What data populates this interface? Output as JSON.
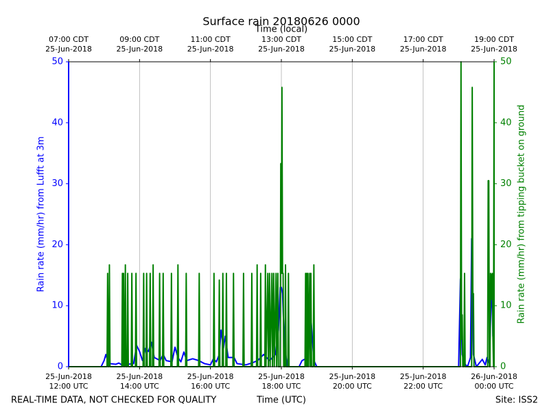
{
  "chart_data": {
    "type": "line",
    "title": "Surface rain 20180626 0000",
    "x2_label": "Time (local)",
    "x_label": "Time (UTC)",
    "y_label": "Rain rate (mm/hr) from Lufft at 3m",
    "y2_label": "Rain rate (mm/hr) from tipping bucket on ground",
    "footer_left": "REAL-TIME DATA, NOT CHECKED FOR QUALITY",
    "footer_right": "Site: ISS2",
    "grid": true,
    "xlim": [
      "2018-06-25T12:00",
      "2018-06-26T00:00"
    ],
    "xticks": [
      {
        "value": "2018-06-25T12:00",
        "label": "25-Jun-2018\n12:00 UTC"
      },
      {
        "value": "2018-06-25T14:00",
        "label": "25-Jun-2018\n14:00 UTC"
      },
      {
        "value": "2018-06-25T16:00",
        "label": "25-Jun-2018\n16:00 UTC"
      },
      {
        "value": "2018-06-25T18:00",
        "label": "25-Jun-2018\n18:00 UTC"
      },
      {
        "value": "2018-06-25T20:00",
        "label": "25-Jun-2018\n20:00 UTC"
      },
      {
        "value": "2018-06-25T22:00",
        "label": "25-Jun-2018\n22:00 UTC"
      },
      {
        "value": "2018-06-26T00:00",
        "label": "26-Jun-2018\n00:00 UTC"
      }
    ],
    "x2ticks": [
      {
        "value": "2018-06-25T12:00",
        "label": "07:00 CDT\n25-Jun-2018"
      },
      {
        "value": "2018-06-25T14:00",
        "label": "09:00 CDT\n25-Jun-2018"
      },
      {
        "value": "2018-06-25T16:00",
        "label": "11:00 CDT\n25-Jun-2018"
      },
      {
        "value": "2018-06-25T18:00",
        "label": "13:00 CDT\n25-Jun-2018"
      },
      {
        "value": "2018-06-25T20:00",
        "label": "15:00 CDT\n25-Jun-2018"
      },
      {
        "value": "2018-06-25T22:00",
        "label": "17:00 CDT\n25-Jun-2018"
      },
      {
        "value": "2018-06-26T00:00",
        "label": "19:00 CDT\n25-Jun-2018"
      }
    ],
    "ylim": [
      0,
      50
    ],
    "yticks": [
      0,
      10,
      20,
      30,
      40,
      50
    ],
    "y2lim": [
      0,
      50
    ],
    "y2ticks": [
      0,
      10,
      20,
      30,
      40,
      50
    ],
    "y_color": "#0000ff",
    "y2_color": "#008000",
    "series": [
      {
        "color": "#0000ff",
        "x": [
          "2018-06-25T12:00",
          "2018-06-25T12:55",
          "2018-06-25T13:00",
          "2018-06-25T13:03",
          "2018-06-25T13:06",
          "2018-06-25T13:08",
          "2018-06-25T13:10",
          "2018-06-25T13:20",
          "2018-06-25T13:25",
          "2018-06-25T13:30",
          "2018-06-25T13:50",
          "2018-06-25T13:55",
          "2018-06-25T14:00",
          "2018-06-25T14:05",
          "2018-06-25T14:10",
          "2018-06-25T14:15",
          "2018-06-25T14:20",
          "2018-06-25T14:25",
          "2018-06-25T14:35",
          "2018-06-25T14:40",
          "2018-06-25T14:45",
          "2018-06-25T14:55",
          "2018-06-25T15:00",
          "2018-06-25T15:05",
          "2018-06-25T15:10",
          "2018-06-25T15:15",
          "2018-06-25T15:20",
          "2018-06-25T15:30",
          "2018-06-25T15:40",
          "2018-06-25T15:50",
          "2018-06-25T16:00",
          "2018-06-25T16:05",
          "2018-06-25T16:10",
          "2018-06-25T16:15",
          "2018-06-25T16:18",
          "2018-06-25T16:22",
          "2018-06-25T16:25",
          "2018-06-25T16:30",
          "2018-06-25T16:40",
          "2018-06-25T16:45",
          "2018-06-25T17:00",
          "2018-06-25T17:10",
          "2018-06-25T17:20",
          "2018-06-25T17:30",
          "2018-06-25T17:40",
          "2018-06-25T17:50",
          "2018-06-25T17:55",
          "2018-06-25T17:58",
          "2018-06-25T18:00",
          "2018-06-25T18:02",
          "2018-06-25T18:05",
          "2018-06-25T18:10",
          "2018-06-25T18:30",
          "2018-06-25T18:35",
          "2018-06-25T18:45",
          "2018-06-25T18:50",
          "2018-06-25T18:55",
          "2018-06-25T19:00",
          "2018-06-25T23:00",
          "2018-06-25T23:03",
          "2018-06-25T23:06",
          "2018-06-25T23:10",
          "2018-06-25T23:15",
          "2018-06-25T23:20",
          "2018-06-25T23:22",
          "2018-06-25T23:25",
          "2018-06-25T23:30",
          "2018-06-25T23:40",
          "2018-06-25T23:45",
          "2018-06-25T23:48",
          "2018-06-25T23:52",
          "2018-06-25T23:56",
          "2018-06-25T23:58",
          "2018-06-26T00:00"
        ],
        "values": [
          0,
          0,
          1,
          2,
          1,
          5,
          0.5,
          0.4,
          0.6,
          0.3,
          0.5,
          3.5,
          2.5,
          1,
          3,
          2.5,
          4,
          1.5,
          1,
          2,
          1,
          0.8,
          3.2,
          1.5,
          0.8,
          2.4,
          1,
          1.3,
          1,
          0.5,
          0.3,
          1.3,
          0.8,
          2,
          6,
          3,
          5,
          1.5,
          1.5,
          0.5,
          0.3,
          0.6,
          1,
          2,
          1,
          2,
          6,
          13,
          13,
          12,
          4,
          0,
          0,
          1,
          1.5,
          8,
          1,
          0,
          0,
          14.4,
          2,
          0.5,
          0,
          1.5,
          21,
          2,
          0,
          1.2,
          0.3,
          1.5,
          0.5,
          14.5,
          5,
          8
        ]
      },
      {
        "color": "#008000",
        "axis": "y2",
        "x": [
          "2018-06-25T12:00",
          "2018-06-25T13:05",
          "2018-06-25T13:06",
          "2018-06-25T13:07",
          "2018-06-25T13:08",
          "2018-06-25T13:09",
          "2018-06-25T13:10",
          "2018-06-25T13:30",
          "2018-06-25T13:31",
          "2018-06-25T13:32",
          "2018-06-25T13:33",
          "2018-06-25T13:34",
          "2018-06-25T13:35",
          "2018-06-25T13:36",
          "2018-06-25T13:37",
          "2018-06-25T13:39",
          "2018-06-25T13:40",
          "2018-06-25T13:41",
          "2018-06-25T13:46",
          "2018-06-25T13:47",
          "2018-06-25T13:48",
          "2018-06-25T13:53",
          "2018-06-25T13:54",
          "2018-06-25T13:55",
          "2018-06-25T14:06",
          "2018-06-25T14:07",
          "2018-06-25T14:08",
          "2018-06-25T14:11",
          "2018-06-25T14:12",
          "2018-06-25T14:13",
          "2018-06-25T14:17",
          "2018-06-25T14:18",
          "2018-06-25T14:19",
          "2018-06-25T14:22",
          "2018-06-25T14:23",
          "2018-06-25T14:24",
          "2018-06-25T14:33",
          "2018-06-25T14:34",
          "2018-06-25T14:35",
          "2018-06-25T14:39",
          "2018-06-25T14:40",
          "2018-06-25T14:41",
          "2018-06-25T14:53",
          "2018-06-25T14:54",
          "2018-06-25T14:55",
          "2018-06-25T15:04",
          "2018-06-25T15:05",
          "2018-06-25T15:06",
          "2018-06-25T15:18",
          "2018-06-25T15:19",
          "2018-06-25T15:20",
          "2018-06-25T15:40",
          "2018-06-25T15:41",
          "2018-06-25T15:42",
          "2018-06-25T16:05",
          "2018-06-25T16:06",
          "2018-06-25T16:07",
          "2018-06-25T16:14",
          "2018-06-25T16:15",
          "2018-06-25T16:16",
          "2018-06-25T16:20",
          "2018-06-25T16:21",
          "2018-06-25T16:22",
          "2018-06-25T16:26",
          "2018-06-25T16:27",
          "2018-06-25T16:28",
          "2018-06-25T16:38",
          "2018-06-25T16:39",
          "2018-06-25T16:40",
          "2018-06-25T16:55",
          "2018-06-25T16:56",
          "2018-06-25T16:57",
          "2018-06-25T17:09",
          "2018-06-25T17:10",
          "2018-06-25T17:11",
          "2018-06-25T17:18",
          "2018-06-25T17:19",
          "2018-06-25T17:20",
          "2018-06-25T17:24",
          "2018-06-25T17:25",
          "2018-06-25T17:26",
          "2018-06-25T17:32",
          "2018-06-25T17:33",
          "2018-06-25T17:34",
          "2018-06-25T17:37",
          "2018-06-25T17:38",
          "2018-06-25T17:40",
          "2018-06-25T17:41",
          "2018-06-25T17:44",
          "2018-06-25T17:45",
          "2018-06-25T17:47",
          "2018-06-25T17:48",
          "2018-06-25T17:51",
          "2018-06-25T17:52",
          "2018-06-25T17:54",
          "2018-06-25T17:55",
          "2018-06-25T17:58",
          "2018-06-25T17:59",
          "2018-06-25T18:00",
          "2018-06-25T18:01",
          "2018-06-25T18:02",
          "2018-06-25T18:03",
          "2018-06-25T18:04",
          "2018-06-25T18:06",
          "2018-06-25T18:07",
          "2018-06-25T18:08",
          "2018-06-25T18:11",
          "2018-06-25T18:12",
          "2018-06-25T18:13",
          "2018-06-25T18:40",
          "2018-06-25T18:41",
          "2018-06-25T18:42",
          "2018-06-25T18:43",
          "2018-06-25T18:44",
          "2018-06-25T18:45",
          "2018-06-25T18:46",
          "2018-06-25T18:48",
          "2018-06-25T18:49",
          "2018-06-25T18:50",
          "2018-06-25T18:51",
          "2018-06-25T18:54",
          "2018-06-25T18:55",
          "2018-06-25T18:56",
          "2018-06-25T23:03",
          "2018-06-25T23:04",
          "2018-06-25T23:05",
          "2018-06-25T23:06",
          "2018-06-25T23:07",
          "2018-06-25T23:09",
          "2018-06-25T23:10",
          "2018-06-25T23:11",
          "2018-06-25T23:22",
          "2018-06-25T23:23",
          "2018-06-25T23:24",
          "2018-06-25T23:25",
          "2018-06-25T23:26",
          "2018-06-25T23:49",
          "2018-06-25T23:50",
          "2018-06-25T23:51",
          "2018-06-25T23:52",
          "2018-06-25T23:53",
          "2018-06-25T23:54",
          "2018-06-25T23:55",
          "2018-06-25T23:56",
          "2018-06-25T23:57",
          "2018-06-25T23:58",
          "2018-06-25T23:59",
          "2018-06-26T00:00"
        ],
        "values": [
          0,
          0,
          15.3,
          0,
          0,
          16.7,
          0,
          0,
          15.3,
          0,
          15.3,
          0,
          0,
          16.7,
          0,
          0,
          15.3,
          0,
          0,
          15.3,
          0,
          0,
          15.3,
          0,
          0,
          15.3,
          0,
          0,
          15.3,
          0,
          0,
          15.3,
          0,
          0,
          16.7,
          0,
          0,
          15.3,
          0,
          0,
          15.3,
          0,
          0,
          15.3,
          0,
          0,
          16.7,
          0,
          0,
          15.3,
          0,
          0,
          15.3,
          0,
          0,
          15.3,
          0,
          0,
          14.2,
          0,
          0,
          15.3,
          0,
          0,
          15.3,
          0,
          0,
          15.3,
          0,
          0,
          15.3,
          0,
          0,
          15.3,
          0,
          0,
          16.7,
          0,
          0,
          15.3,
          0,
          0,
          16.7,
          0,
          15.3,
          0,
          15.3,
          0,
          15.3,
          0,
          15.3,
          0,
          15.3,
          0,
          15.3,
          0,
          0,
          33.3,
          15.3,
          45.8,
          15.3,
          15.3,
          0,
          0,
          16.7,
          0,
          0,
          15.3,
          0,
          0,
          15.3,
          0,
          15.3,
          0,
          15.3,
          0,
          15.3,
          0,
          15.3,
          0,
          0,
          16.7,
          0,
          0,
          50,
          4.5,
          8.5,
          0,
          0,
          15.3,
          0,
          0,
          45.8,
          12,
          12,
          0,
          0,
          30.5,
          30.5,
          0,
          0,
          15.3,
          11,
          15,
          15.3,
          5,
          0,
          50
        ]
      }
    ]
  }
}
